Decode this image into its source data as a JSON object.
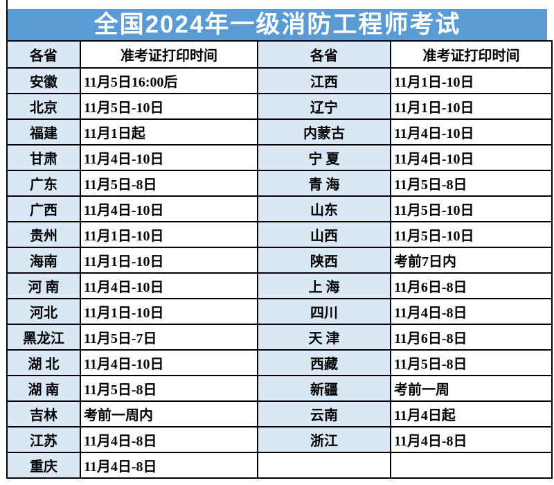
{
  "title": "全国2024年一级消防工程师考试",
  "colors": {
    "title_bg": "#5B9BD5",
    "title_text": "#ffffff",
    "province_cell_bg": "#DAE7F4",
    "border": "#000000",
    "empty_divider": "#c9c9c9"
  },
  "header": {
    "province_label": "各省",
    "time_label": "准考证打印时间"
  },
  "rows": [
    {
      "left_province": "安徽",
      "left_time": "11月5日16:00后",
      "right_province": "江西",
      "right_time": "11月1日-10日"
    },
    {
      "left_province": "北京",
      "left_time": "11月5日-10日",
      "right_province": "辽宁",
      "right_time": "11月1日-10日"
    },
    {
      "left_province": "福建",
      "left_time": "11月1日起",
      "right_province": "内蒙古",
      "right_time": "11月4日-10日"
    },
    {
      "left_province": "甘肃",
      "left_time": "11月4日-10日",
      "right_province": "宁 夏",
      "right_time": "11月4日-10日"
    },
    {
      "left_province": "广东",
      "left_time": "11月5日-8日",
      "right_province": "青 海",
      "right_time": "11月5日-8日"
    },
    {
      "left_province": "广西",
      "left_time": "11月4日-10日",
      "right_province": "山东",
      "right_time": "11月5日-10日"
    },
    {
      "left_province": "贵州",
      "left_time": "11月1日-10日",
      "right_province": "山西",
      "right_time": "11月5日-10日"
    },
    {
      "left_province": "海南",
      "left_time": "11月1日-10日",
      "right_province": "陕西",
      "right_time": "考前7日内"
    },
    {
      "left_province": "河 南",
      "left_time": "11月4日-10日",
      "right_province": "上 海",
      "right_time": "11月6日-8日"
    },
    {
      "left_province": "河北",
      "left_time": "11月1日-10日",
      "right_province": "四川",
      "right_time": "11月4日-8日"
    },
    {
      "left_province": "黑龙江",
      "left_time": "11月5日-7日",
      "right_province": "天 津",
      "right_time": "11月6日-8日"
    },
    {
      "left_province": "湖 北",
      "left_time": "11月4日-10日",
      "right_province": "西藏",
      "right_time": "11月5日-8日"
    },
    {
      "left_province": "湖 南",
      "left_time": "11月5日-8日",
      "right_province": "新疆",
      "right_time": "考前一周"
    },
    {
      "left_province": "吉林",
      "left_time": "考前一周内",
      "right_province": "云南",
      "right_time": "11月4日起"
    },
    {
      "left_province": "江苏",
      "left_time": "11月4日-8日",
      "right_province": "浙江",
      "right_time": "11月4日-8日"
    },
    {
      "left_province": "重庆",
      "left_time": "11月4日-8日",
      "right_province": "",
      "right_time": ""
    }
  ]
}
